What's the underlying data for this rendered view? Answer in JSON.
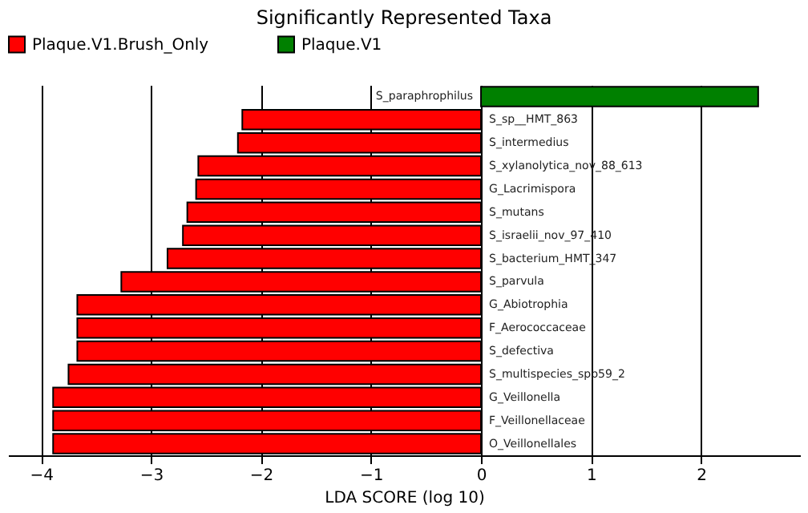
{
  "chart_data": {
    "type": "bar",
    "orientation": "horizontal",
    "title": "Significantly Represented Taxa",
    "xlabel": "LDA SCORE (log 10)",
    "categories": [
      "S_paraphrophilus",
      "S_sp__HMT_863",
      "S_intermedius",
      "S_xylanolytica_nov_88_613",
      "G_Lacrimispora",
      "S_mutans",
      "S_israelii_nov_97_410",
      "S_bacterium_HMT_347",
      "S_parvula",
      "G_Abiotrophia",
      "F_Aerococcaceae",
      "S_defectiva",
      "S_multispecies_spp59_2",
      "G_Veillonella",
      "F_Veillonellaceae",
      "O_Veillonellales"
    ],
    "series": [
      {
        "name": "Plaque.V1.Brush_Only",
        "color": "#ff0000",
        "values": [
          null,
          -2.17,
          -2.21,
          -2.57,
          -2.59,
          -2.67,
          -2.71,
          -2.85,
          -3.27,
          -3.67,
          -3.67,
          -3.67,
          -3.75,
          -3.89,
          -3.89,
          -3.89
        ]
      },
      {
        "name": "Plaque.V1",
        "color": "#008000",
        "values": [
          2.52,
          null,
          null,
          null,
          null,
          null,
          null,
          null,
          null,
          null,
          null,
          null,
          null,
          null,
          null,
          null
        ]
      }
    ],
    "xlim": [
      -4.3,
      2.9
    ],
    "xticks": [
      -4,
      -3,
      -2,
      -1,
      0,
      1,
      2
    ],
    "grid": "x",
    "legend": "top"
  }
}
